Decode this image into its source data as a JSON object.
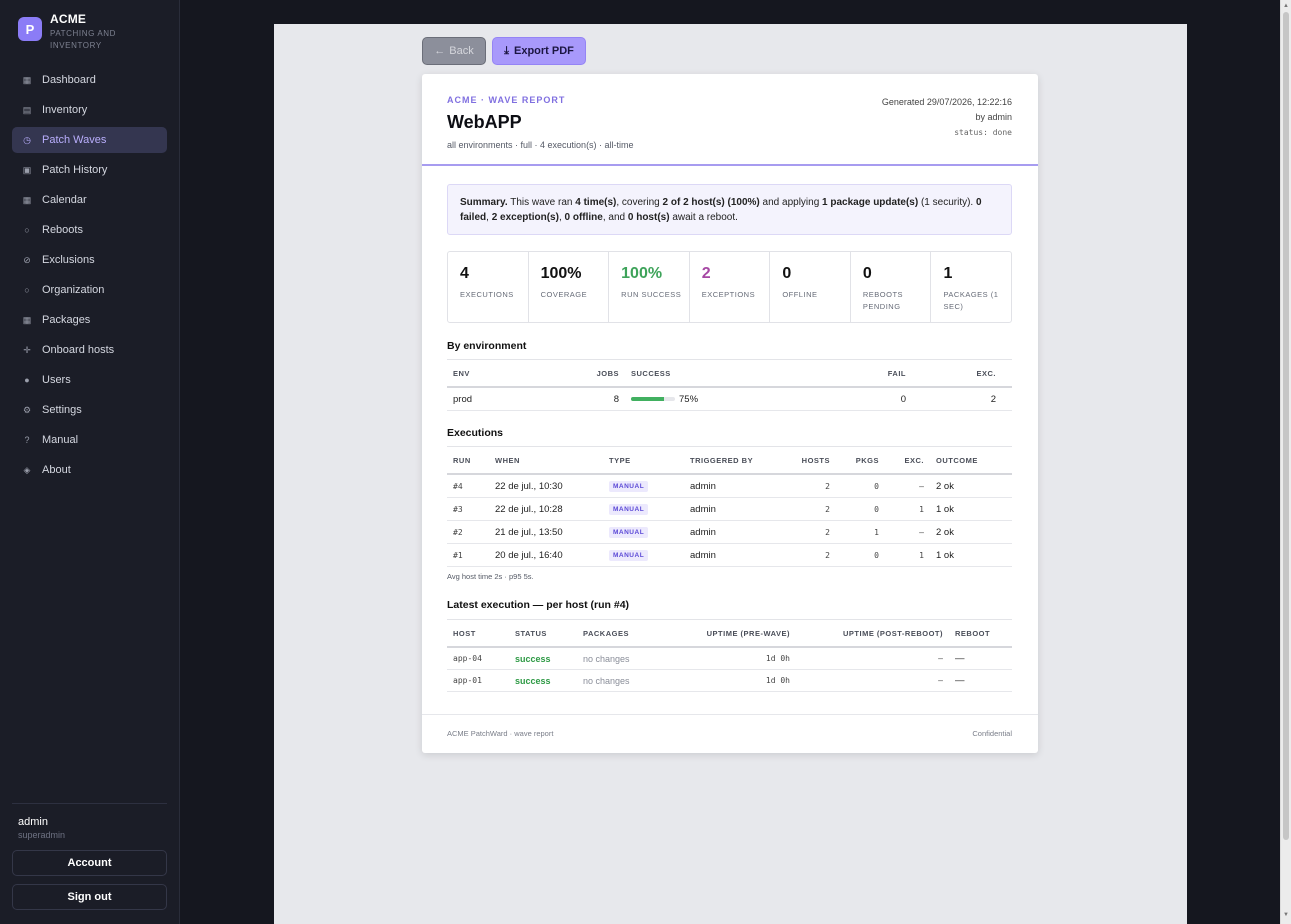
{
  "brand": {
    "logo_letter": "P",
    "name": "ACME",
    "subtitle": "PATCHING AND INVENTORY"
  },
  "sidebar": {
    "items": [
      {
        "label": "Dashboard",
        "icon": "grid-icon",
        "glyph": "▦",
        "active": false
      },
      {
        "label": "Inventory",
        "icon": "list-icon",
        "glyph": "▤",
        "active": false
      },
      {
        "label": "Patch Waves",
        "icon": "clock-icon",
        "glyph": "◷",
        "active": true
      },
      {
        "label": "Patch History",
        "icon": "square-icon",
        "glyph": "▣",
        "active": false
      },
      {
        "label": "Calendar",
        "icon": "calendar-icon",
        "glyph": "▦",
        "active": false
      },
      {
        "label": "Reboots",
        "icon": "circle-icon",
        "glyph": "○",
        "active": false
      },
      {
        "label": "Exclusions",
        "icon": "slash-circle-icon",
        "glyph": "⊘",
        "active": false
      },
      {
        "label": "Organization",
        "icon": "circle-icon",
        "glyph": "○",
        "active": false
      },
      {
        "label": "Packages",
        "icon": "package-icon",
        "glyph": "▦",
        "active": false
      },
      {
        "label": "Onboard hosts",
        "icon": "plus-icon",
        "glyph": "✛",
        "active": false
      },
      {
        "label": "Users",
        "icon": "user-icon",
        "glyph": "●",
        "active": false
      },
      {
        "label": "Settings",
        "icon": "gear-icon",
        "glyph": "⚙",
        "active": false
      },
      {
        "label": "Manual",
        "icon": "question-icon",
        "glyph": "?",
        "active": false
      },
      {
        "label": "About",
        "icon": "diamond-icon",
        "glyph": "◈",
        "active": false
      }
    ],
    "user": {
      "name": "admin",
      "role": "superadmin"
    },
    "account_label": "Account",
    "signout_label": "Sign out"
  },
  "toolbar": {
    "back_label": "Back",
    "back_glyph": "←",
    "export_label": "Export PDF",
    "export_glyph": "⤓"
  },
  "report": {
    "kicker": "ACME · WAVE REPORT",
    "title": "WebAPP",
    "subtitle": "all environments · full · 4 execution(s) · all-time",
    "generated": "Generated 29/07/2026, 12:22:16",
    "by": "by admin",
    "status": "status: done",
    "summary": {
      "lead": "Summary.",
      "t1": " This wave ran ",
      "b1": "4 time(s)",
      "t2": ", covering ",
      "b2": "2 of 2 host(s) (100%)",
      "t3": " and applying ",
      "b3": "1 package update(s)",
      "t4": " (1 security). ",
      "b4": "0 failed",
      "t5": ", ",
      "b5": "2 exception(s)",
      "t6": ", ",
      "b6": "0 offline",
      "t7": ", and ",
      "b7": "0 host(s)",
      "t8": " await a reboot."
    },
    "stats": [
      {
        "value": "4",
        "label": "EXECUTIONS",
        "tone": ""
      },
      {
        "value": "100%",
        "label": "COVERAGE",
        "tone": ""
      },
      {
        "value": "100%",
        "label": "RUN SUCCESS",
        "tone": "green"
      },
      {
        "value": "2",
        "label": "EXCEPTIONS",
        "tone": "purple"
      },
      {
        "value": "0",
        "label": "OFFLINE",
        "tone": ""
      },
      {
        "value": "0",
        "label": "REBOOTS PENDING",
        "tone": ""
      },
      {
        "value": "1",
        "label": "PACKAGES (1 SEC)",
        "tone": ""
      }
    ],
    "by_env": {
      "heading": "By environment",
      "headers": [
        "ENV",
        "JOBS",
        "SUCCESS",
        "FAIL",
        "EXC."
      ],
      "rows": [
        {
          "env": "prod",
          "jobs": "8",
          "success_pct": "75%",
          "success_frac": 0.75,
          "fail": "0",
          "exc": "2"
        }
      ]
    },
    "executions": {
      "heading": "Executions",
      "headers": [
        "RUN",
        "WHEN",
        "TYPE",
        "TRIGGERED BY",
        "HOSTS",
        "PKGS",
        "EXC.",
        "OUTCOME"
      ],
      "rows": [
        {
          "run": "#4",
          "when": "22 de jul., 10:30",
          "type": "MANUAL",
          "by": "admin",
          "hosts": "2",
          "pkgs": "0",
          "exc": "—",
          "outcome": "2 ok"
        },
        {
          "run": "#3",
          "when": "22 de jul., 10:28",
          "type": "MANUAL",
          "by": "admin",
          "hosts": "2",
          "pkgs": "0",
          "exc": "1",
          "outcome": "1 ok"
        },
        {
          "run": "#2",
          "when": "21 de jul., 13:50",
          "type": "MANUAL",
          "by": "admin",
          "hosts": "2",
          "pkgs": "1",
          "exc": "—",
          "outcome": "2 ok"
        },
        {
          "run": "#1",
          "when": "20 de jul., 16:40",
          "type": "MANUAL",
          "by": "admin",
          "hosts": "2",
          "pkgs": "0",
          "exc": "1",
          "outcome": "1 ok"
        }
      ],
      "note": "Avg host time 2s · p95 5s."
    },
    "latest": {
      "heading": "Latest execution — per host (run #4)",
      "headers": [
        "HOST",
        "STATUS",
        "PACKAGES",
        "UPTIME (PRE-WAVE)",
        "UPTIME (POST-REBOOT)",
        "REBOOT"
      ],
      "rows": [
        {
          "host": "app-04",
          "status": "success",
          "packages": "no changes",
          "pre": "1d 0h",
          "post": "—",
          "reboot": "—"
        },
        {
          "host": "app-01",
          "status": "success",
          "packages": "no changes",
          "pre": "1d 0h",
          "post": "—",
          "reboot": "—"
        }
      ]
    },
    "footer": {
      "left": "ACME PatchWard · wave report",
      "right": "Confidential"
    }
  }
}
